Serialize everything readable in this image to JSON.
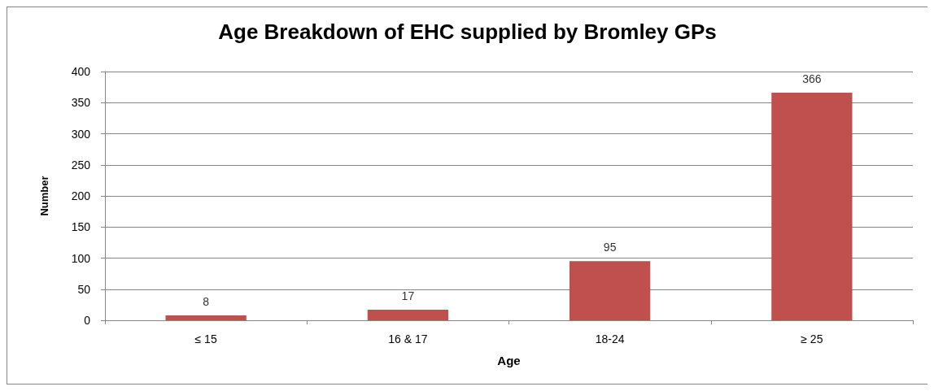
{
  "chart_data": {
    "type": "bar",
    "title": "Age Breakdown of EHC supplied by Bromley GPs",
    "xlabel": "Age",
    "ylabel": "Number",
    "categories": [
      "≤ 15",
      "16 & 17",
      "18-24",
      "≥ 25"
    ],
    "values": [
      8,
      17,
      95,
      366
    ],
    "color": "#c0504d",
    "ylim": [
      0,
      400
    ],
    "yticks": [
      0,
      50,
      100,
      150,
      200,
      250,
      300,
      350,
      400
    ],
    "grid": "y",
    "data_labels": true
  }
}
